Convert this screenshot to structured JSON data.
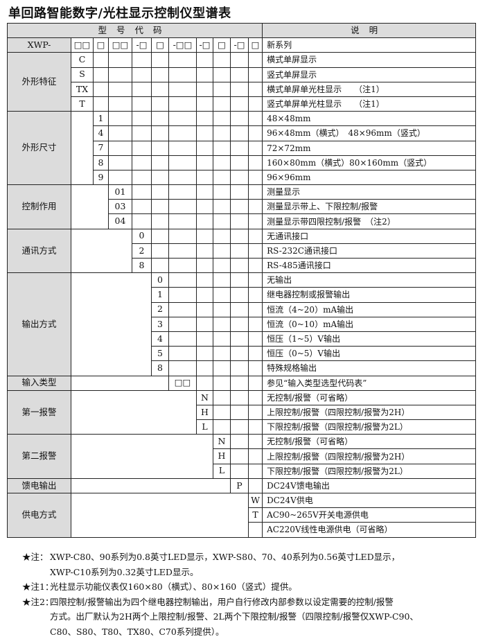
{
  "title": "单回路智能数字/光柱显示控制仪型谱表",
  "header": {
    "code": "型号代码",
    "desc": "说明"
  },
  "model_row": {
    "label": "XWP-",
    "codes": [
      "□□",
      "□",
      "□□",
      "-□",
      "□",
      "-□□",
      "-□",
      "□",
      "-□",
      "□"
    ],
    "desc": "新系列"
  },
  "groups": [
    {
      "label": "外形特征",
      "col": 1,
      "rows": [
        {
          "code": "C",
          "desc": "横式单屏显示"
        },
        {
          "code": "S",
          "desc": "竖式单屏显示"
        },
        {
          "code": "TX",
          "desc": "横式单屏单光柱显示　　（注1）"
        },
        {
          "code": "T",
          "desc": "竖式单屏单光柱显示　　（注1）"
        }
      ]
    },
    {
      "label": "外形尺寸",
      "col": 2,
      "rows": [
        {
          "code": "1",
          "desc": "48×48mm"
        },
        {
          "code": "4",
          "desc": "96×48mm（横式）　48×96mm（竖式）"
        },
        {
          "code": "7",
          "desc": "72×72mm"
        },
        {
          "code": "8",
          "desc": "160×80mm（横式）80×160mm（竖式）"
        },
        {
          "code": "9",
          "desc": "96×96mm"
        }
      ]
    },
    {
      "label": "控制作用",
      "col": 3,
      "rows": [
        {
          "code": "01",
          "desc": "测量显示"
        },
        {
          "code": "03",
          "desc": "测量显示带上、下限控制/报警"
        },
        {
          "code": "04",
          "desc": "测量显示带四限控制/报警　（注2）"
        }
      ]
    },
    {
      "label": "通讯方式",
      "col": 4,
      "rows": [
        {
          "code": "0",
          "desc": "无通讯接口"
        },
        {
          "code": "2",
          "desc": "RS-232C通讯接口"
        },
        {
          "code": "8",
          "desc": "RS-485通讯接口"
        }
      ]
    },
    {
      "label": "输出方式",
      "col": 5,
      "rows": [
        {
          "code": "0",
          "desc": "无输出"
        },
        {
          "code": "1",
          "desc": "继电器控制或报警输出"
        },
        {
          "code": "2",
          "desc": "恒流（4~20）mA输出"
        },
        {
          "code": "3",
          "desc": "恒流（0~10）mA输出"
        },
        {
          "code": "4",
          "desc": "恒压（1~5）V输出"
        },
        {
          "code": "5",
          "desc": "恒压（0~5）V输出"
        },
        {
          "code": "8",
          "desc": "特殊规格输出"
        }
      ]
    },
    {
      "label": "输入类型",
      "col": 6,
      "rows": [
        {
          "code": "□□",
          "desc": "参见“输入类型选型代码表”"
        }
      ]
    },
    {
      "label": "第一报警",
      "col": 7,
      "rows": [
        {
          "code": "N",
          "desc": "无控制/报警（可省略）"
        },
        {
          "code": "H",
          "desc": "上限控制/报警（四限控制/报警为2H）"
        },
        {
          "code": "L",
          "desc": "下限控制/报警（四限控制/报警为2L）"
        }
      ]
    },
    {
      "label": "第二报警",
      "col": 8,
      "rows": [
        {
          "code": "N",
          "desc": "无控制/报警（可省略）"
        },
        {
          "code": "H",
          "desc": "上限控制/报警（四限控制/报警为2H）"
        },
        {
          "code": "L",
          "desc": "下限控制/报警（四限控制/报警为2L）"
        }
      ]
    },
    {
      "label": "馈电输出",
      "col": 9,
      "rows": [
        {
          "code": "P",
          "desc": "DC24V馈电输出"
        }
      ]
    },
    {
      "label": "供电方式",
      "col": 10,
      "rows": [
        {
          "code": "W",
          "desc": "DC24V供电"
        },
        {
          "code": "T",
          "desc": "AC90~265V开关电源供电"
        },
        {
          "code": "",
          "desc": "AC220V线性电源供电（可省略）"
        }
      ]
    }
  ],
  "notes": [
    {
      "key": "★注：",
      "lines": [
        "XWP-C80、90系列为0.8英寸LED显示，XWP-S80、70、40系列为0.56英寸LED显示，",
        "XWP-C10系列为0.32英寸LED显示。"
      ]
    },
    {
      "key": "★注1：",
      "lines": [
        "光柱显示功能仪表仅160×80（横式）、80×160（竖式）提供。"
      ]
    },
    {
      "key": "★注2：",
      "lines": [
        "四限控制/报警输出为四个继电器控制输出，用户自行修改内部参数以设定需要的控制/报警",
        "方式。出厂默认为2H两个上限控制/报警、2L两个下限控制/报警（四限控制/报警仅XWP-C90、",
        "C80、S80、T80、TX80、C70系列提供）。"
      ]
    }
  ]
}
